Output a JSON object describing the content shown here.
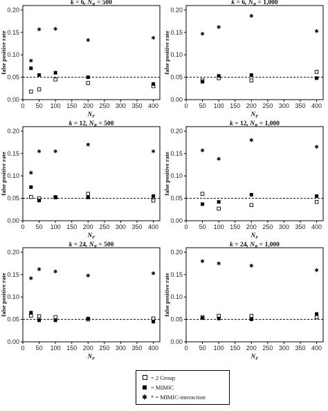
{
  "colors": {
    "ink": "#000000",
    "background": "#ffffff",
    "reference_line": "#000000"
  },
  "legend": {
    "items": [
      {
        "symbol": "open-square",
        "label": "= 2 Group"
      },
      {
        "symbol": "filled-square",
        "label": "= MIMIC"
      },
      {
        "symbol": "asterisk",
        "label": "* = MIMIC-interaction"
      }
    ]
  },
  "chart_data": [
    {
      "type": "scatter",
      "k": "6",
      "nr": "500",
      "ylabel": "false positive rate",
      "xlabel": "N",
      "x_ticks": [
        0,
        50,
        100,
        150,
        200,
        250,
        300,
        350,
        400
      ],
      "y_ticks": [
        "0.00",
        "0.05",
        "0.10",
        "0.15",
        "0.20"
      ],
      "ylim": [
        0,
        0.21
      ],
      "xlim": [
        0,
        420
      ],
      "reference_line": 0.05,
      "series": [
        {
          "name": "2 Group",
          "x": [
            25,
            50,
            100,
            200,
            400
          ],
          "y": [
            0.018,
            0.023,
            0.045,
            0.037,
            0.03
          ]
        },
        {
          "name": "MIMIC",
          "x": [
            25,
            50,
            100,
            200,
            400
          ],
          "y": [
            0.07,
            0.055,
            0.06,
            0.05,
            0.035
          ]
        },
        {
          "name": "MIMIC-interaction",
          "x": [
            25,
            50,
            100,
            200,
            400
          ],
          "y": [
            0.087,
            0.157,
            0.158,
            0.133,
            0.138
          ]
        }
      ]
    },
    {
      "type": "scatter",
      "k": "6",
      "nr": "1,000",
      "ylabel": "false positive rate",
      "xlabel": "N",
      "x_ticks": [
        0,
        50,
        100,
        150,
        200,
        250,
        300,
        350,
        400
      ],
      "y_ticks": [
        "0.00",
        "0.05",
        "0.10",
        "0.15",
        "0.20"
      ],
      "ylim": [
        0,
        0.21
      ],
      "xlim": [
        0,
        420
      ],
      "reference_line": 0.05,
      "series": [
        {
          "name": "2 Group",
          "x": [
            50,
            100,
            200,
            400
          ],
          "y": [
            0.043,
            0.048,
            0.043,
            0.062
          ]
        },
        {
          "name": "MIMIC",
          "x": [
            50,
            100,
            200,
            400
          ],
          "y": [
            0.04,
            0.053,
            0.055,
            0.048
          ]
        },
        {
          "name": "MIMIC-interaction",
          "x": [
            50,
            100,
            200,
            400
          ],
          "y": [
            0.147,
            0.162,
            0.187,
            0.153
          ]
        }
      ]
    },
    {
      "type": "scatter",
      "k": "12",
      "nr": "500",
      "ylabel": "false positive rate",
      "xlabel": "N",
      "x_ticks": [
        0,
        50,
        100,
        150,
        200,
        250,
        300,
        350,
        400
      ],
      "y_ticks": [
        "0.00",
        "0.05",
        "0.10",
        "0.15",
        "0.20"
      ],
      "ylim": [
        0,
        0.21
      ],
      "xlim": [
        0,
        420
      ],
      "reference_line": 0.05,
      "series": [
        {
          "name": "2 Group",
          "x": [
            25,
            50,
            100,
            200,
            400
          ],
          "y": [
            0.053,
            0.05,
            0.052,
            0.06,
            0.045
          ]
        },
        {
          "name": "MIMIC",
          "x": [
            25,
            50,
            100,
            200,
            400
          ],
          "y": [
            0.075,
            0.045,
            0.053,
            0.052,
            0.055
          ]
        },
        {
          "name": "MIMIC-interaction",
          "x": [
            25,
            50,
            100,
            200,
            400
          ],
          "y": [
            0.107,
            0.155,
            0.155,
            0.17,
            0.155
          ]
        }
      ]
    },
    {
      "type": "scatter",
      "k": "12",
      "nr": "1,000",
      "ylabel": "false positive rate",
      "xlabel": "N",
      "x_ticks": [
        0,
        50,
        100,
        150,
        200,
        250,
        300,
        350,
        400
      ],
      "y_ticks": [
        "0.00",
        "0.05",
        "0.10",
        "0.15",
        "0.20"
      ],
      "ylim": [
        0,
        0.21
      ],
      "xlim": [
        0,
        420
      ],
      "reference_line": 0.05,
      "series": [
        {
          "name": "2 Group",
          "x": [
            50,
            100,
            200,
            400
          ],
          "y": [
            0.06,
            0.027,
            0.035,
            0.042
          ]
        },
        {
          "name": "MIMIC",
          "x": [
            50,
            100,
            200,
            400
          ],
          "y": [
            0.037,
            0.042,
            0.058,
            0.055
          ]
        },
        {
          "name": "MIMIC-interaction",
          "x": [
            50,
            100,
            200,
            400
          ],
          "y": [
            0.157,
            0.138,
            0.18,
            0.165
          ]
        }
      ]
    },
    {
      "type": "scatter",
      "k": "24",
      "nr": "500",
      "ylabel": "false positive rate",
      "xlabel": "N",
      "x_ticks": [
        0,
        50,
        100,
        150,
        200,
        250,
        300,
        350,
        400
      ],
      "y_ticks": [
        "0.00",
        "0.05",
        "0.10",
        "0.15",
        "0.20"
      ],
      "ylim": [
        0,
        0.21
      ],
      "xlim": [
        0,
        420
      ],
      "reference_line": 0.05,
      "series": [
        {
          "name": "2 Group",
          "x": [
            25,
            50,
            100,
            200,
            400
          ],
          "y": [
            0.058,
            0.057,
            0.055,
            0.05,
            0.052
          ]
        },
        {
          "name": "MIMIC",
          "x": [
            25,
            50,
            100,
            200,
            400
          ],
          "y": [
            0.065,
            0.048,
            0.048,
            0.052,
            0.045
          ]
        },
        {
          "name": "MIMIC-interaction",
          "x": [
            25,
            50,
            100,
            200,
            400
          ],
          "y": [
            0.142,
            0.162,
            0.157,
            0.148,
            0.153
          ]
        }
      ]
    },
    {
      "type": "scatter",
      "k": "24",
      "nr": "1,000",
      "ylabel": "false positive rate",
      "xlabel": "N",
      "x_ticks": [
        0,
        50,
        100,
        150,
        200,
        250,
        300,
        350,
        400
      ],
      "y_ticks": [
        "0.00",
        "0.05",
        "0.10",
        "0.15",
        "0.20"
      ],
      "ylim": [
        0,
        0.21
      ],
      "xlim": [
        0,
        420
      ],
      "reference_line": 0.05,
      "series": [
        {
          "name": "2 Group",
          "x": [
            50,
            100,
            200,
            400
          ],
          "y": [
            0.055,
            0.058,
            0.058,
            0.055
          ]
        },
        {
          "name": "MIMIC",
          "x": [
            50,
            100,
            200,
            400
          ],
          "y": [
            0.053,
            0.052,
            0.05,
            0.062
          ]
        },
        {
          "name": "MIMIC-interaction",
          "x": [
            50,
            100,
            200,
            400
          ],
          "y": [
            0.18,
            0.175,
            0.17,
            0.16
          ]
        }
      ]
    }
  ]
}
